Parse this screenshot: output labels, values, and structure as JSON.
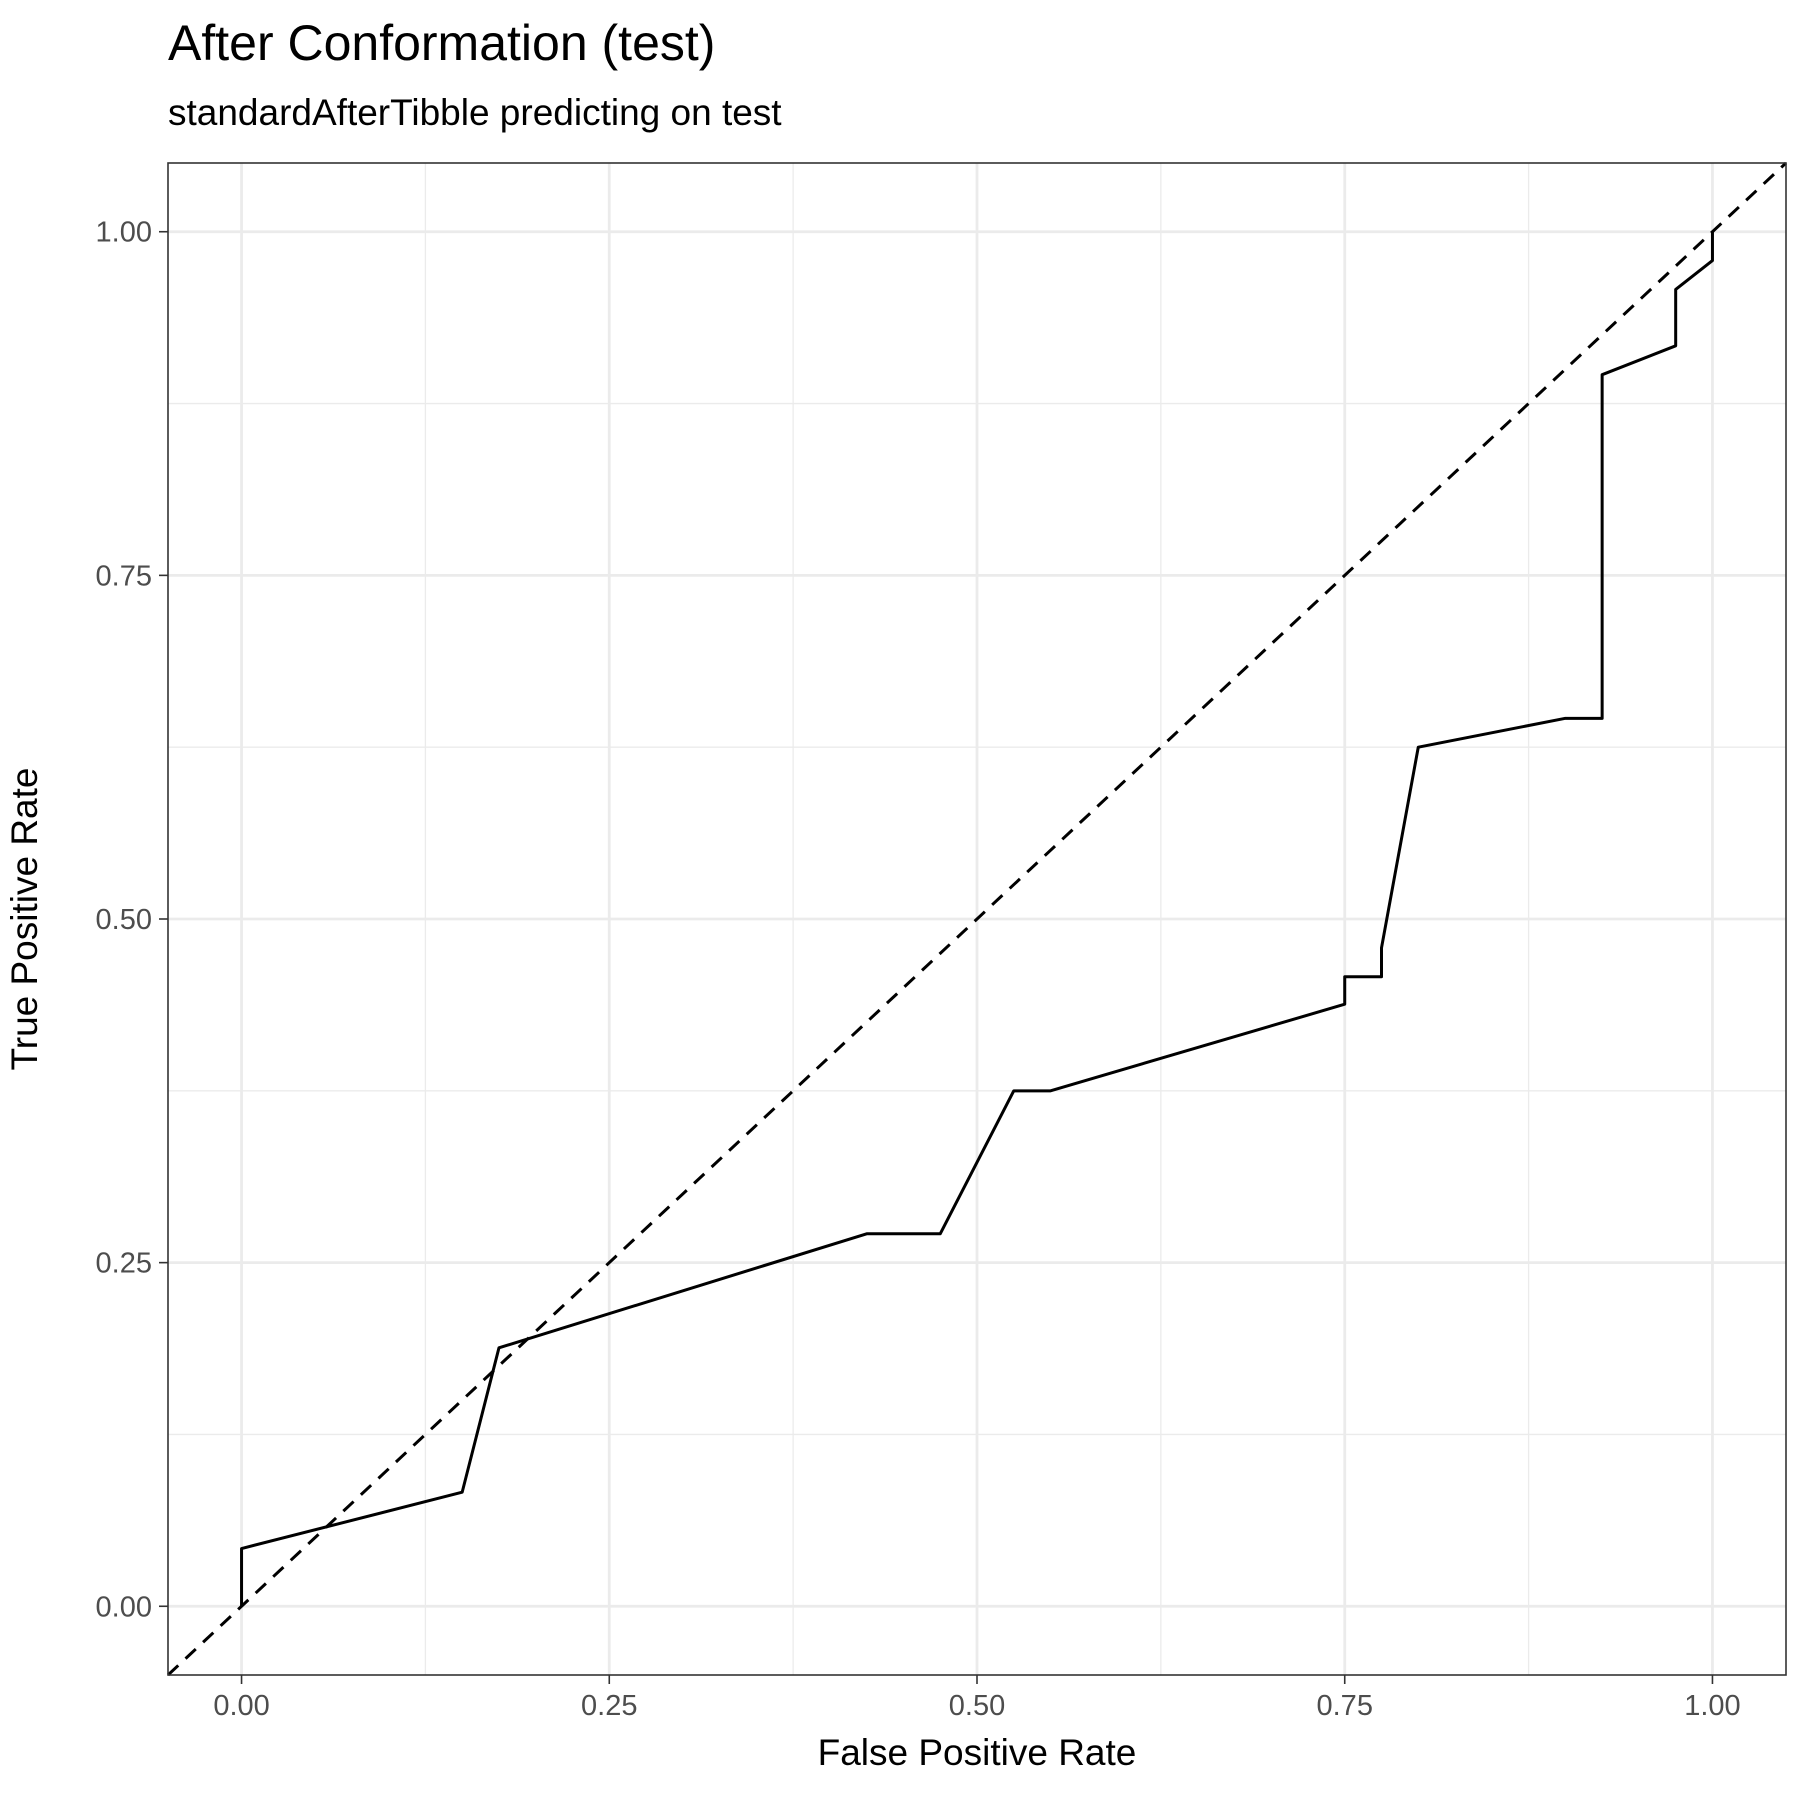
{
  "chart_data": {
    "type": "line",
    "title": "After Conformation (test)",
    "subtitle": "standardAfterTibble predicting on test",
    "xlabel": "False Positive Rate",
    "ylabel": "True Positive Rate",
    "xlim": [
      -0.05,
      1.05
    ],
    "ylim": [
      -0.05,
      1.05
    ],
    "xticks": [
      0,
      0.25,
      0.5,
      0.75,
      1
    ],
    "yticks": [
      0,
      0.25,
      0.5,
      0.75,
      1
    ],
    "xtick_labels": [
      "0.00",
      "0.25",
      "0.50",
      "0.75",
      "1.00"
    ],
    "ytick_labels": [
      "0.00",
      "0.25",
      "0.50",
      "0.75",
      "1.00"
    ],
    "grid": true,
    "reference_line": {
      "style": "dashed",
      "slope": 1,
      "intercept": 0
    },
    "series": [
      {
        "color": "#000000",
        "x": [
          0.0,
          0.0,
          0.15,
          0.175,
          0.425,
          0.475,
          0.525,
          0.55,
          0.75,
          0.75,
          0.775,
          0.775,
          0.8,
          0.9,
          0.925,
          0.925,
          0.975,
          0.975,
          1.0,
          1.0
        ],
        "y": [
          0.0,
          0.042,
          0.083,
          0.188,
          0.271,
          0.271,
          0.375,
          0.375,
          0.438,
          0.458,
          0.458,
          0.479,
          0.625,
          0.646,
          0.646,
          0.896,
          0.917,
          0.958,
          0.979,
          1.0
        ]
      }
    ]
  }
}
